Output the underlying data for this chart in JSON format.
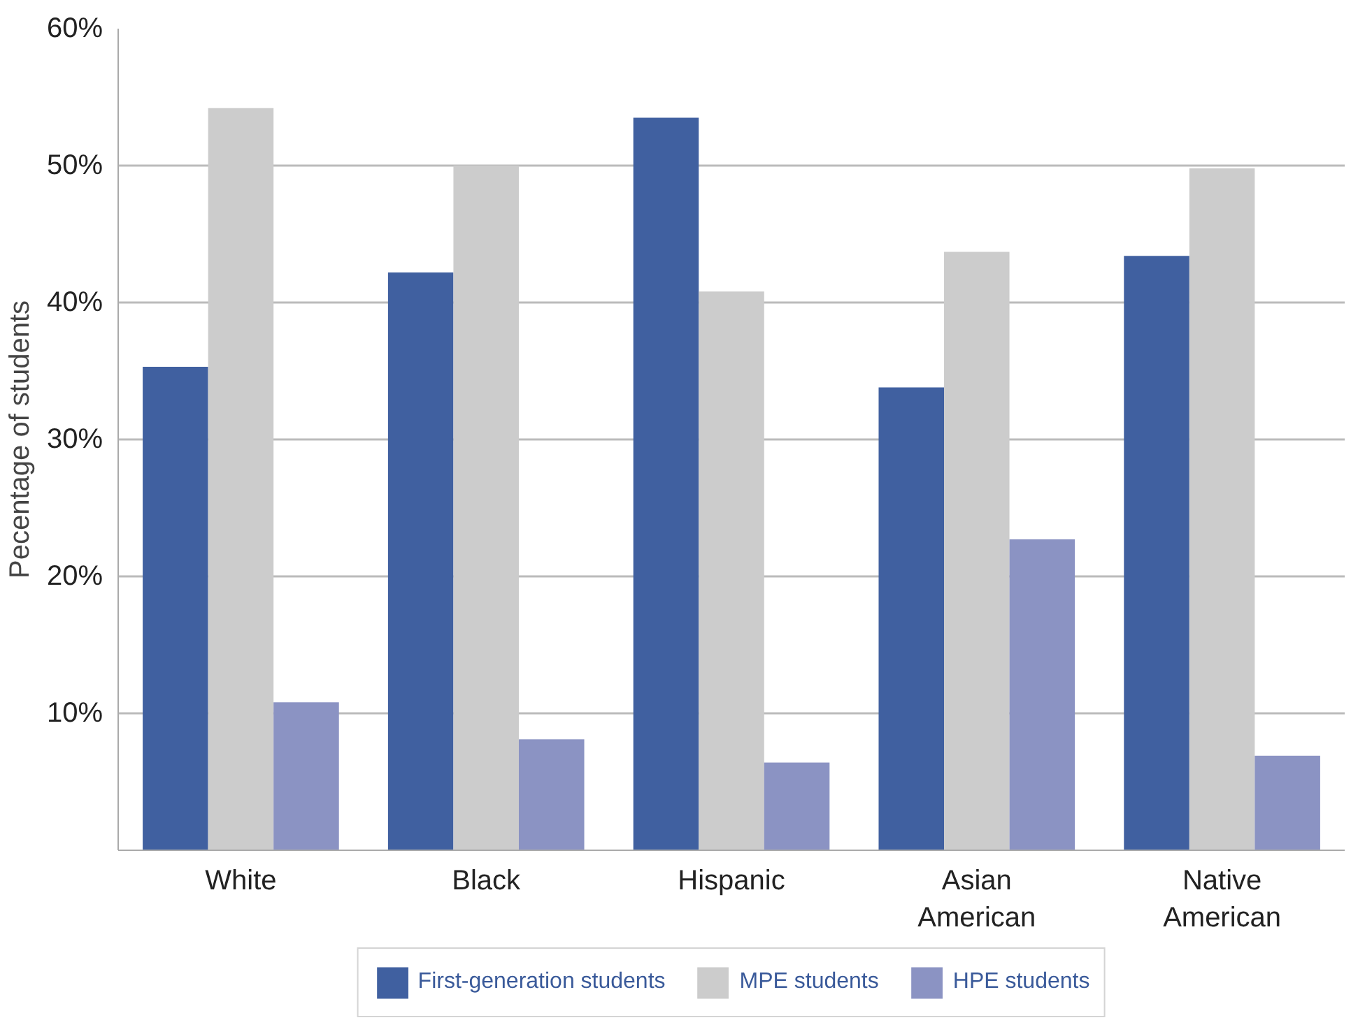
{
  "chart_data": {
    "type": "bar",
    "ylabel": "Pecentage of students",
    "categories": [
      "White",
      "Black",
      "Hispanic",
      "Asian American",
      "Native American"
    ],
    "series": [
      {
        "name": "First-generation students",
        "color": "#4060a0",
        "values": [
          35.3,
          42.2,
          53.5,
          33.8,
          43.4
        ]
      },
      {
        "name": "MPE students",
        "color": "#cccccc",
        "values": [
          54.2,
          50.0,
          40.8,
          43.7,
          49.8
        ]
      },
      {
        "name": "HPE students",
        "color": "#8b93c3",
        "values": [
          10.8,
          8.1,
          6.4,
          22.7,
          6.9
        ]
      }
    ],
    "ylim": [
      0,
      60
    ],
    "yticks": [
      {
        "value": 10,
        "label": "10%"
      },
      {
        "value": 20,
        "label": "20%"
      },
      {
        "value": 30,
        "label": "30%"
      },
      {
        "value": 40,
        "label": "40%"
      },
      {
        "value": 50,
        "label": "50%"
      },
      {
        "value": 60,
        "label": "60%"
      }
    ],
    "grid": "y",
    "legend": "bottom"
  }
}
